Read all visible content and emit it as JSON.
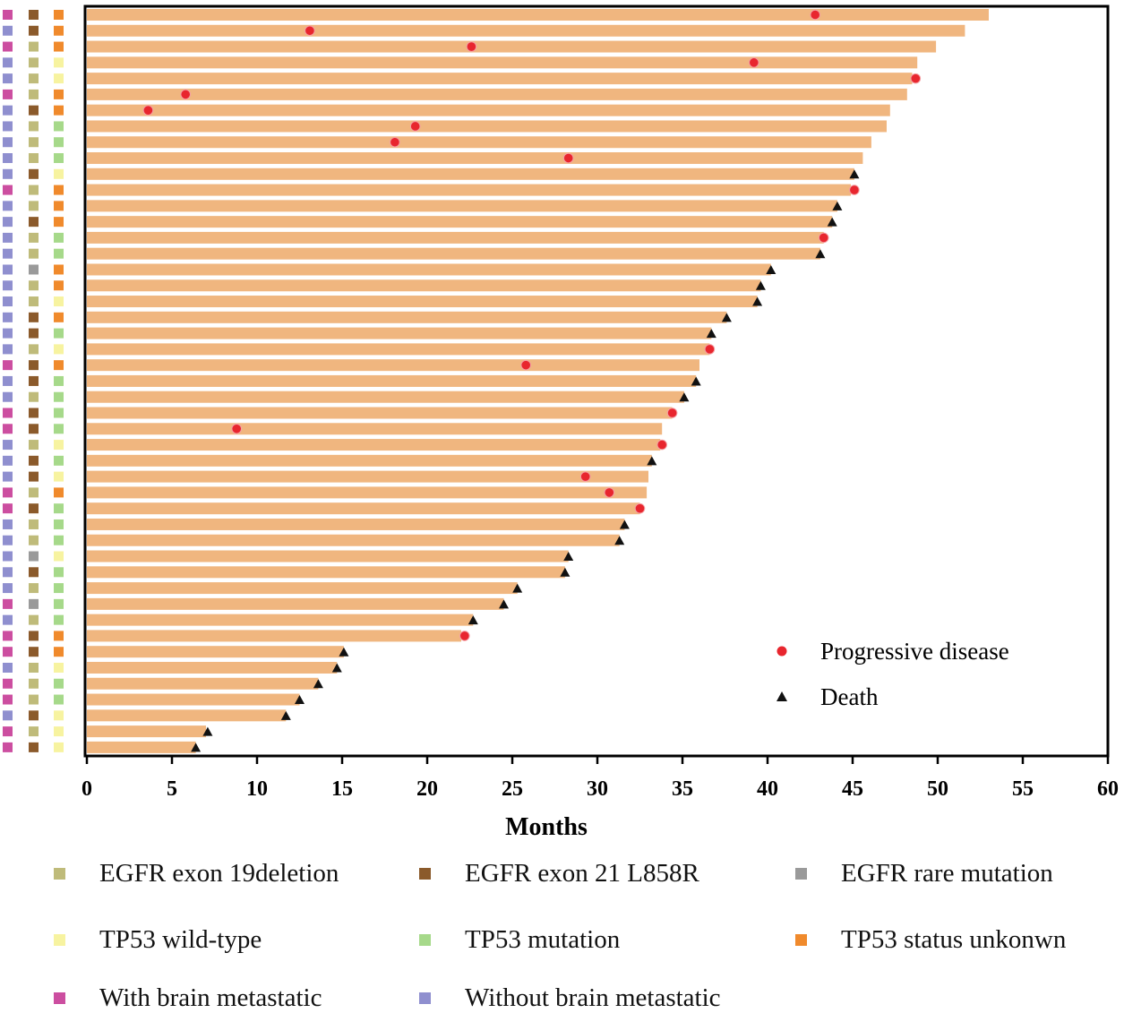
{
  "chart_data": {
    "type": "swimmer",
    "title": "",
    "xlabel": "Months",
    "xlim": [
      0,
      60
    ],
    "xticks": [
      "0",
      "5",
      "10",
      "15",
      "20",
      "25",
      "30",
      "35",
      "40",
      "45",
      "50",
      "55",
      "60"
    ],
    "patients": [
      {
        "duration": 53.0,
        "brain": "With brain metastatic",
        "egfr": "EGFR exon 21 L858R",
        "tp53": "TP53 status unkonwn",
        "event": "Progressive disease",
        "event_time": 42.8
      },
      {
        "duration": 51.6,
        "brain": "Without brain metastatic",
        "egfr": "EGFR exon 21 L858R",
        "tp53": "TP53 status unkonwn",
        "event": "Progressive disease",
        "event_time": 13.1
      },
      {
        "duration": 49.9,
        "brain": "With brain metastatic",
        "egfr": "EGFR exon 19deletion",
        "tp53": "TP53 status unkonwn",
        "event": "Progressive disease",
        "event_time": 22.6
      },
      {
        "duration": 48.8,
        "brain": "Without brain metastatic",
        "egfr": "EGFR exon 19deletion",
        "tp53": "TP53 wild-type",
        "event": "Progressive disease",
        "event_time": 39.2
      },
      {
        "duration": 48.5,
        "brain": "Without brain metastatic",
        "egfr": "EGFR exon 19deletion",
        "tp53": "TP53 wild-type",
        "event": "Progressive disease",
        "event_time": 48.7
      },
      {
        "duration": 48.2,
        "brain": "With brain metastatic",
        "egfr": "EGFR exon 19deletion",
        "tp53": "TP53 status unkonwn",
        "event": "Progressive disease",
        "event_time": 5.8
      },
      {
        "duration": 47.2,
        "brain": "Without brain metastatic",
        "egfr": "EGFR exon 21 L858R",
        "tp53": "TP53 status unkonwn",
        "event": "Progressive disease",
        "event_time": 3.6
      },
      {
        "duration": 47.0,
        "brain": "Without brain metastatic",
        "egfr": "EGFR exon 19deletion",
        "tp53": "TP53 mutation",
        "event": "Progressive disease",
        "event_time": 19.3
      },
      {
        "duration": 46.1,
        "brain": "Without brain metastatic",
        "egfr": "EGFR exon 19deletion",
        "tp53": "TP53 mutation",
        "event": "Progressive disease",
        "event_time": 18.1
      },
      {
        "duration": 45.6,
        "brain": "Without brain metastatic",
        "egfr": "EGFR exon 19deletion",
        "tp53": "TP53 mutation",
        "event": "Progressive disease",
        "event_time": 28.3
      },
      {
        "duration": 45.1,
        "brain": "Without brain metastatic",
        "egfr": "EGFR exon 21 L858R",
        "tp53": "TP53 wild-type",
        "event": "Death",
        "event_time": 45.1
      },
      {
        "duration": 44.9,
        "brain": "With brain metastatic",
        "egfr": "EGFR exon 19deletion",
        "tp53": "TP53 status unkonwn",
        "event": "Progressive disease",
        "event_time": 45.1
      },
      {
        "duration": 44.1,
        "brain": "Without brain metastatic",
        "egfr": "EGFR exon 19deletion",
        "tp53": "TP53 status unkonwn",
        "event": "Death",
        "event_time": 44.1
      },
      {
        "duration": 43.8,
        "brain": "Without brain metastatic",
        "egfr": "EGFR exon 21 L858R",
        "tp53": "TP53 status unkonwn",
        "event": "Death",
        "event_time": 43.8
      },
      {
        "duration": 43.3,
        "brain": "Without brain metastatic",
        "egfr": "EGFR exon 19deletion",
        "tp53": "TP53 mutation",
        "event": "Progressive disease",
        "event_time": 43.3
      },
      {
        "duration": 43.1,
        "brain": "Without brain metastatic",
        "egfr": "EGFR exon 19deletion",
        "tp53": "TP53 mutation",
        "event": "Death",
        "event_time": 43.1
      },
      {
        "duration": 40.2,
        "brain": "Without brain metastatic",
        "egfr": "EGFR rare mutation",
        "tp53": "TP53 status unkonwn",
        "event": "Death",
        "event_time": 40.2
      },
      {
        "duration": 39.6,
        "brain": "Without brain metastatic",
        "egfr": "EGFR exon 19deletion",
        "tp53": "TP53 status unkonwn",
        "event": "Death",
        "event_time": 39.6
      },
      {
        "duration": 39.4,
        "brain": "Without brain metastatic",
        "egfr": "EGFR exon 19deletion",
        "tp53": "TP53 wild-type",
        "event": "Death",
        "event_time": 39.4
      },
      {
        "duration": 37.6,
        "brain": "Without brain metastatic",
        "egfr": "EGFR exon 21 L858R",
        "tp53": "TP53 status unkonwn",
        "event": "Death",
        "event_time": 37.6
      },
      {
        "duration": 36.7,
        "brain": "Without brain metastatic",
        "egfr": "EGFR exon 21 L858R",
        "tp53": "TP53 mutation",
        "event": "Death",
        "event_time": 36.7
      },
      {
        "duration": 36.6,
        "brain": "Without brain metastatic",
        "egfr": "EGFR exon 19deletion",
        "tp53": "TP53 wild-type",
        "event": "Progressive disease",
        "event_time": 36.6
      },
      {
        "duration": 36.0,
        "brain": "With brain metastatic",
        "egfr": "EGFR exon 21 L858R",
        "tp53": "TP53 status unkonwn",
        "event": "Progressive disease",
        "event_time": 25.8
      },
      {
        "duration": 35.8,
        "brain": "Without brain metastatic",
        "egfr": "EGFR exon 21 L858R",
        "tp53": "TP53 mutation",
        "event": "Death",
        "event_time": 35.8
      },
      {
        "duration": 35.1,
        "brain": "Without brain metastatic",
        "egfr": "EGFR exon 19deletion",
        "tp53": "TP53 mutation",
        "event": "Death",
        "event_time": 35.1
      },
      {
        "duration": 34.4,
        "brain": "With brain metastatic",
        "egfr": "EGFR exon 21 L858R",
        "tp53": "TP53 mutation",
        "event": "Progressive disease",
        "event_time": 34.4
      },
      {
        "duration": 33.8,
        "brain": "With brain metastatic",
        "egfr": "EGFR exon 21 L858R",
        "tp53": "TP53 mutation",
        "event": "Progressive disease",
        "event_time": 8.8
      },
      {
        "duration": 33.7,
        "brain": "Without brain metastatic",
        "egfr": "EGFR exon 19deletion",
        "tp53": "TP53 wild-type",
        "event": "Progressive disease",
        "event_time": 33.8
      },
      {
        "duration": 33.2,
        "brain": "Without brain metastatic",
        "egfr": "EGFR exon 21 L858R",
        "tp53": "TP53 mutation",
        "event": "Death",
        "event_time": 33.2
      },
      {
        "duration": 33.0,
        "brain": "Without brain metastatic",
        "egfr": "EGFR exon 21 L858R",
        "tp53": "TP53 wild-type",
        "event": "Progressive disease",
        "event_time": 29.3
      },
      {
        "duration": 32.9,
        "brain": "With brain metastatic",
        "egfr": "EGFR exon 19deletion",
        "tp53": "TP53 status unkonwn",
        "event": "Progressive disease",
        "event_time": 30.7
      },
      {
        "duration": 32.5,
        "brain": "With brain metastatic",
        "egfr": "EGFR exon 21 L858R",
        "tp53": "TP53 mutation",
        "event": "Progressive disease",
        "event_time": 32.5
      },
      {
        "duration": 31.6,
        "brain": "Without brain metastatic",
        "egfr": "EGFR exon 19deletion",
        "tp53": "TP53 mutation",
        "event": "Death",
        "event_time": 31.6
      },
      {
        "duration": 31.3,
        "brain": "Without brain metastatic",
        "egfr": "EGFR exon 19deletion",
        "tp53": "TP53 mutation",
        "event": "Death",
        "event_time": 31.3
      },
      {
        "duration": 28.3,
        "brain": "Without brain metastatic",
        "egfr": "EGFR rare mutation",
        "tp53": "TP53 wild-type",
        "event": "Death",
        "event_time": 28.3
      },
      {
        "duration": 28.1,
        "brain": "Without brain metastatic",
        "egfr": "EGFR exon 21 L858R",
        "tp53": "TP53 mutation",
        "event": "Death",
        "event_time": 28.1
      },
      {
        "duration": 25.3,
        "brain": "Without brain metastatic",
        "egfr": "EGFR exon 19deletion",
        "tp53": "TP53 mutation",
        "event": "Death",
        "event_time": 25.3
      },
      {
        "duration": 24.5,
        "brain": "With brain metastatic",
        "egfr": "EGFR rare mutation",
        "tp53": "TP53 mutation",
        "event": "Death",
        "event_time": 24.5
      },
      {
        "duration": 22.7,
        "brain": "Without brain metastatic",
        "egfr": "EGFR exon 19deletion",
        "tp53": "TP53 mutation",
        "event": "Death",
        "event_time": 22.7
      },
      {
        "duration": 22.0,
        "brain": "With brain metastatic",
        "egfr": "EGFR exon 21 L858R",
        "tp53": "TP53 status unkonwn",
        "event": "Progressive disease",
        "event_time": 22.2
      },
      {
        "duration": 15.1,
        "brain": "With brain metastatic",
        "egfr": "EGFR exon 21 L858R",
        "tp53": "TP53 status unkonwn",
        "event": "Death",
        "event_time": 15.1
      },
      {
        "duration": 14.7,
        "brain": "Without brain metastatic",
        "egfr": "EGFR exon 19deletion",
        "tp53": "TP53 wild-type",
        "event": "Death",
        "event_time": 14.7
      },
      {
        "duration": 13.6,
        "brain": "With brain metastatic",
        "egfr": "EGFR exon 19deletion",
        "tp53": "TP53 mutation",
        "event": "Death",
        "event_time": 13.6
      },
      {
        "duration": 12.5,
        "brain": "With brain metastatic",
        "egfr": "EGFR exon 19deletion",
        "tp53": "TP53 mutation",
        "event": "Death",
        "event_time": 12.5
      },
      {
        "duration": 11.7,
        "brain": "Without brain metastatic",
        "egfr": "EGFR exon 21 L858R",
        "tp53": "TP53 wild-type",
        "event": "Death",
        "event_time": 11.7
      },
      {
        "duration": 7.0,
        "brain": "With brain metastatic",
        "egfr": "EGFR exon 19deletion",
        "tp53": "TP53 wild-type",
        "event": "Death",
        "event_time": 7.1
      },
      {
        "duration": 6.4,
        "brain": "With brain metastatic",
        "egfr": "EGFR exon 21 L858R",
        "tp53": "TP53 wild-type",
        "event": "Death",
        "event_time": 6.4
      }
    ],
    "event_legend": [
      {
        "label": "Progressive disease",
        "marker": "circle",
        "color": "#e8262e"
      },
      {
        "label": "Death",
        "marker": "triangle",
        "color": "#111111"
      }
    ]
  },
  "colors": {
    "bar": "#f0b67f",
    "progressive": "#e8262e",
    "death": "#111111",
    "EGFR exon 19deletion": "#bfbb7a",
    "EGFR exon 21 L858R": "#8b5a2b",
    "EGFR rare mutation": "#9a9a9a",
    "TP53 wild-type": "#f7f3a0",
    "TP53 mutation": "#a6d98a",
    "TP53 status unkonwn": "#f08a2c",
    "With brain metastatic": "#cc4ea0",
    "Without brain metastatic": "#8f8fcf"
  },
  "legend": [
    {
      "label": "EGFR exon 19deletion",
      "color": "#bfbb7a"
    },
    {
      "label": "EGFR exon 21 L858R",
      "color": "#8b5a2b"
    },
    {
      "label": "EGFR rare mutation",
      "color": "#9a9a9a"
    },
    {
      "label": "TP53 wild-type",
      "color": "#f7f3a0"
    },
    {
      "label": "TP53 mutation",
      "color": "#a6d98a"
    },
    {
      "label": "TP53 status unkonwn",
      "color": "#f08a2c"
    },
    {
      "label": "With brain metastatic",
      "color": "#cc4ea0"
    },
    {
      "label": "Without brain metastatic",
      "color": "#8f8fcf"
    }
  ]
}
